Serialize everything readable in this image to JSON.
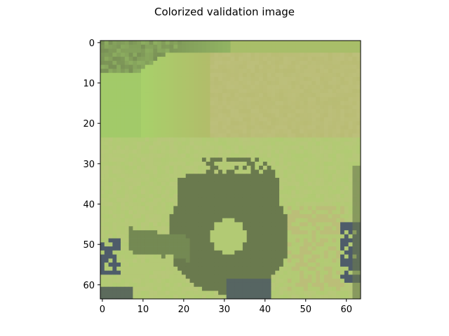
{
  "chart_data": {
    "type": "heatmap",
    "title": "Colorized validation image",
    "xlabel": "",
    "ylabel": "",
    "image_size": [
      64,
      64
    ],
    "xlim": [
      -0.5,
      63.5
    ],
    "ylim": [
      63.5,
      -0.5
    ],
    "x_ticks": [
      0,
      10,
      20,
      30,
      40,
      50,
      60
    ],
    "y_ticks": [
      0,
      10,
      20,
      30,
      40,
      50,
      60
    ],
    "x_tick_labels": [
      "0",
      "10",
      "20",
      "30",
      "40",
      "50",
      "60"
    ],
    "y_tick_labels": [
      "0",
      "10",
      "20",
      "30",
      "40",
      "50",
      "60"
    ],
    "grid": false,
    "palette": {
      "dark_olive": "#6a7a4e",
      "light_green": "#9cc468",
      "bright_green": "#a8d06a",
      "khaki": "#b4b86a",
      "pale_khaki": "#c0c282",
      "slate_blue": "#4e5c6a"
    },
    "content": "Colorized 64x64 image of a flower: dark olive center disk with ring around (center ~x=31,y=48, radius ~14), khaki/green petals and background, slate blue shadows in lower corners"
  }
}
